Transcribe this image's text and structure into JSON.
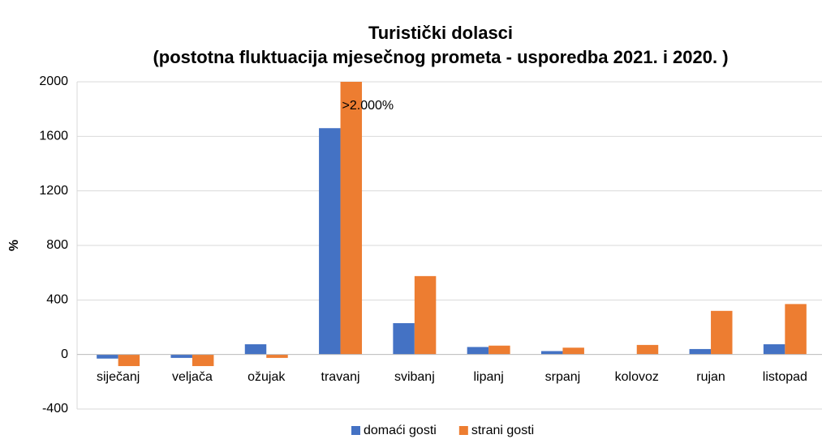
{
  "chart_data": {
    "type": "bar",
    "title": "Turistički dolasci",
    "subtitle": "(postotna fluktuacija mjesečnog prometa - usporedba 2021. i 2020. )",
    "y_label": "%",
    "annotation": ">2.000%",
    "categories": [
      "siječanj",
      "veljača",
      "ožujak",
      "travanj",
      "svibanj",
      "lipanj",
      "srpanj",
      "kolovoz",
      "rujan",
      "listopad"
    ],
    "series": [
      {
        "name": "domaći gosti",
        "color": "#4472c4",
        "values": [
          -30,
          -25,
          75,
          1660,
          230,
          55,
          25,
          0,
          40,
          75
        ]
      },
      {
        "name": "strani gosti",
        "color": "#ed7d31",
        "values": [
          -85,
          -85,
          -25,
          2000,
          575,
          65,
          50,
          70,
          320,
          370
        ]
      }
    ],
    "ylim": [
      -400,
      2000
    ],
    "yticks": [
      -400,
      0,
      400,
      800,
      1200,
      1600,
      2000
    ],
    "grid": true,
    "legend": "bottom"
  }
}
